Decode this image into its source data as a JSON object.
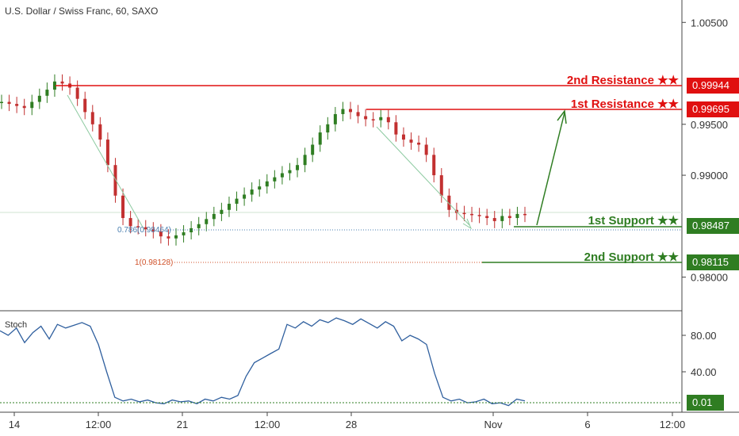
{
  "header": {
    "title": "U.S. Dollar / Swiss Franc, 60, SAXO"
  },
  "stoch_label": "Stoch",
  "colors": {
    "resistance": "#e01010",
    "support": "#2f7d22",
    "fib_786": "#4a7fb0",
    "fib_1": "#d0522a",
    "candle": "#2f7d22",
    "candle_down": "#c23030",
    "stoch": "#2f5f9e"
  },
  "annotations": {
    "r2": {
      "label": "2nd Resistance ★★",
      "value": "0.99944"
    },
    "r1": {
      "label": "1st Resistance ★★",
      "value": "0.99695"
    },
    "s1": {
      "label": "1st Support ★★",
      "value": "0.98487"
    },
    "s2": {
      "label": "2nd Support ★★",
      "value": "0.98115"
    }
  },
  "fib": {
    "f786": "0.786(0.98464)",
    "f1": "1(0.98128)"
  },
  "chart_data": [
    {
      "type": "line",
      "title": "U.S. Dollar / Swiss Franc, 60, SAXO",
      "x_ticks": [
        "14",
        "12:00",
        "21",
        "12:00",
        "28",
        "Nov",
        "6",
        "12:00"
      ],
      "y_ticks": [
        "1.00500",
        "0.99500",
        "0.99000",
        "0.98000"
      ],
      "ylim": [
        0.9767,
        1.0072
      ],
      "series": [
        {
          "values": [
            0.9972,
            0.997,
            0.9968,
            0.9966,
            0.9972,
            0.9978,
            0.9984,
            0.9992,
            0.999,
            0.9986,
            0.9975,
            0.9962,
            0.995,
            0.9935,
            0.991,
            0.988,
            0.9858,
            0.985,
            0.9849,
            0.9847,
            0.9845,
            0.984,
            0.9838,
            0.9841,
            0.9844,
            0.9848,
            0.9852,
            0.9857,
            0.9862,
            0.9866,
            0.9872,
            0.9877,
            0.9881,
            0.9886,
            0.9889,
            0.9894,
            0.9898,
            0.9902,
            0.9905,
            0.991,
            0.992,
            0.993,
            0.9942,
            0.995,
            0.996,
            0.9965,
            0.9962,
            0.9958,
            0.9955,
            0.9954,
            0.9957,
            0.9952,
            0.994,
            0.9935,
            0.9932,
            0.993,
            0.992,
            0.99,
            0.988,
            0.9866,
            0.9863,
            0.9862,
            0.9861,
            0.986,
            0.9858,
            0.9855,
            0.986,
            0.9858,
            0.9862,
            0.9861
          ]
        }
      ],
      "annotations": [
        "2nd Resistance ★★ 0.99944",
        "1st Resistance ★★ 0.99695",
        "1st Support ★★ 0.98487",
        "2nd Support ★★ 0.98115",
        "0.786(0.98464)",
        "1(0.98128)"
      ]
    },
    {
      "type": "line",
      "title": "Stoch",
      "y_ticks": [
        "80.00",
        "40.00"
      ],
      "ylim": [
        0,
        100
      ],
      "series": [
        {
          "values": [
            85,
            80,
            88,
            72,
            83,
            90,
            76,
            92,
            88,
            91,
            94,
            90,
            70,
            40,
            12,
            8,
            10,
            7,
            9,
            6,
            5,
            9,
            7,
            8,
            5,
            10,
            8,
            12,
            10,
            14,
            35,
            50,
            55,
            60,
            65,
            92,
            88,
            95,
            90,
            97,
            94,
            99,
            96,
            92,
            98,
            93,
            88,
            95,
            90,
            74,
            80,
            76,
            70,
            38,
            12,
            8,
            10,
            6,
            7,
            10,
            5,
            6,
            3,
            10,
            8
          ],
          "label": "0.01"
        }
      ]
    }
  ]
}
